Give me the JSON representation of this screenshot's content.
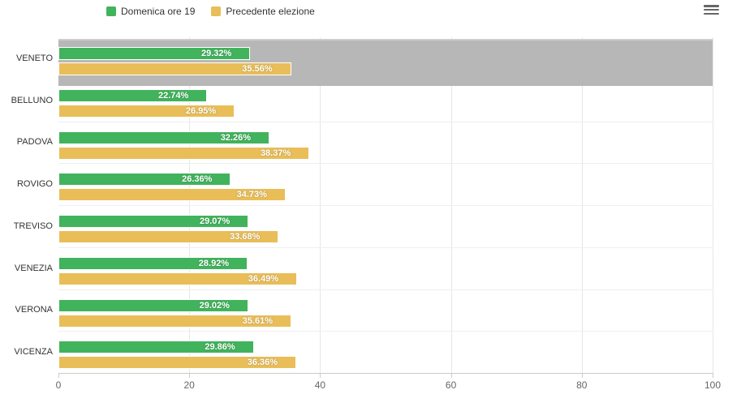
{
  "legend": {
    "items": [
      {
        "label": "Domenica ore 19",
        "color": "#41b35c"
      },
      {
        "label": "Precedente elezione",
        "color": "#e9be58"
      }
    ]
  },
  "icons": {
    "menu": "hamburger-menu-icon"
  },
  "chart_data": {
    "type": "bar",
    "orientation": "horizontal",
    "title": "",
    "categories": [
      "VENETO",
      "BELLUNO",
      "PADOVA",
      "ROVIGO",
      "TREVISO",
      "VENEZIA",
      "VERONA",
      "VICENZA"
    ],
    "series": [
      {
        "name": "Domenica ore 19",
        "color": "#41b35c",
        "values": [
          29.32,
          22.74,
          32.26,
          26.36,
          29.07,
          28.92,
          29.02,
          29.86
        ]
      },
      {
        "name": "Precedente elezione",
        "color": "#e9be58",
        "values": [
          35.56,
          26.95,
          38.37,
          34.73,
          33.68,
          36.49,
          35.61,
          36.36
        ]
      }
    ],
    "data_label_suffix": "%",
    "xlim": [
      0,
      100
    ],
    "x_ticks": [
      0,
      20,
      40,
      60,
      80,
      100
    ],
    "grid": true,
    "legend_position": "top",
    "highlighted_category": "VENETO",
    "highlight_color": "#b7b7b7"
  }
}
